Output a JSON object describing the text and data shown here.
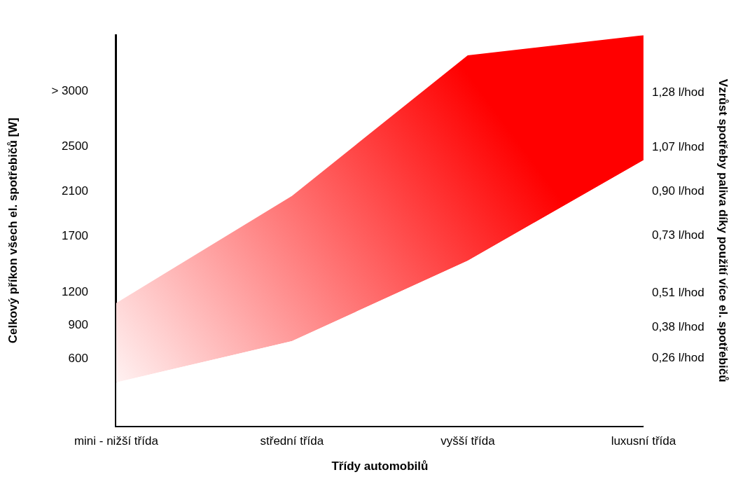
{
  "chart_data": {
    "type": "area",
    "xlabel": "Třídy automobilů",
    "ylabel": "Celkový příkon všech el. spotřebičů [W]",
    "y2label": "Vzrůst spotřeby paliva díky použití více el. spotřebičů",
    "categories": [
      "mini - nižší třída",
      "střední třída",
      "vyšší třída",
      "luxusní třída"
    ],
    "series": [
      {
        "color": "#ffffff",
        "values": [
          390,
          760,
          1480,
          2380
        ]
      },
      {
        "color": "#ff0000",
        "values": [
          710,
          1300,
          1840,
          1120
        ]
      }
    ],
    "stacked": true,
    "ylim": [
      0,
      3500
    ],
    "yticks": [
      600,
      900,
      1200,
      1700,
      2100,
      2500,
      {
        "value": 3000,
        "label": "> 3000"
      }
    ],
    "y2lim": [
      0,
      1.5
    ],
    "y2ticks": [
      {
        "value": 0.26,
        "label": "0,26 l/hod"
      },
      {
        "value": 0.38,
        "label": "0,38 l/hod"
      },
      {
        "value": 0.51,
        "label": "0,51 l/hod"
      },
      {
        "value": 0.73,
        "label": "0,73 l/hod"
      },
      {
        "value": 0.9,
        "label": "0,90 l/hod"
      },
      {
        "value": 1.07,
        "label": "1,07 l/hod"
      },
      {
        "value": 1.28,
        "label": "1,28 l/hod"
      }
    ],
    "grid": false,
    "legend": false
  }
}
